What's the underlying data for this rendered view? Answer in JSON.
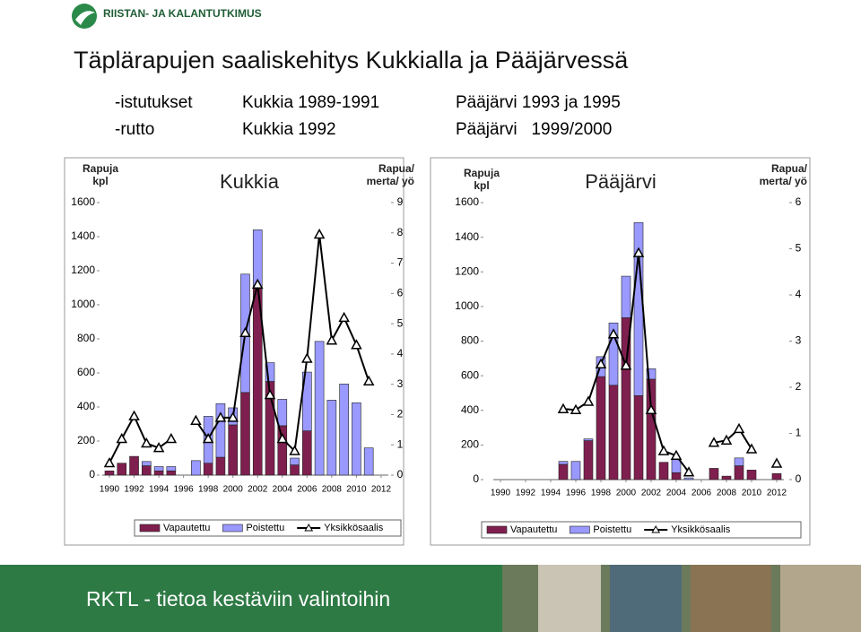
{
  "header": {
    "logo": "RIISTAN- JA KALANTUTKIMUS",
    "title": "Täplärapujen saaliskehitys Kukkialla ja Pääjärvessä",
    "rows": [
      [
        "-istutukset",
        "Kukkia 1989-1991",
        "Pääjärvi 1993 ja 1995"
      ],
      [
        "-rutto",
        "Kukkia 1992",
        "Pääjärvi   1999/2000"
      ]
    ]
  },
  "chart_data": [
    {
      "type": "bar",
      "stacked": true,
      "title": "Kukkia",
      "y_label": "Rapuja kpl",
      "y2_label": "Rapua/ merta/ yö",
      "x": [
        1990,
        1991,
        1992,
        1993,
        1994,
        1995,
        1996,
        1997,
        1998,
        1999,
        2000,
        2001,
        2002,
        2003,
        2004,
        2005,
        2006,
        2007,
        2008,
        2009,
        2010,
        2011,
        2012
      ],
      "xticks": [
        1990,
        1992,
        1994,
        1996,
        1998,
        2000,
        2002,
        2004,
        2006,
        2008,
        2010,
        2012
      ],
      "ylim": [
        0,
        1600
      ],
      "yticks": [
        0,
        200,
        400,
        600,
        800,
        1000,
        1200,
        1400,
        1600
      ],
      "y2lim": [
        0,
        9
      ],
      "y2ticks": [
        0,
        1,
        2,
        3,
        4,
        5,
        6,
        7,
        8,
        9
      ],
      "legend": "bottom",
      "series": [
        {
          "name": "Vapautettu",
          "color": "#7f1f4f",
          "values": [
            25,
            70,
            110,
            55,
            25,
            25,
            null,
            null,
            70,
            105,
            295,
            485,
            1095,
            550,
            290,
            60,
            260,
            null,
            null,
            null,
            null,
            null,
            null
          ]
        },
        {
          "name": "Poistettu",
          "color": "#9999ff",
          "values": [
            null,
            null,
            null,
            25,
            25,
            25,
            null,
            85,
            275,
            315,
            100,
            695,
            345,
            110,
            155,
            40,
            345,
            785,
            440,
            535,
            425,
            160,
            null
          ]
        },
        {
          "name": "Yksikkösaalis",
          "color": "#000000",
          "axis": "y2",
          "line": true,
          "values": [
            0.4,
            1.2,
            1.95,
            1.05,
            0.9,
            1.2,
            null,
            1.8,
            1.2,
            1.9,
            1.9,
            4.7,
            6.3,
            2.65,
            1.2,
            0.8,
            3.85,
            7.95,
            4.45,
            5.2,
            4.3,
            3.1,
            null
          ]
        }
      ]
    },
    {
      "type": "bar",
      "stacked": true,
      "title": "Pääjärvi",
      "y_label": "Rapuja kpl",
      "y2_label": "Rapua/ merta/ yö",
      "x": [
        1990,
        1991,
        1992,
        1993,
        1994,
        1995,
        1996,
        1997,
        1998,
        1999,
        2000,
        2001,
        2002,
        2003,
        2004,
        2005,
        2006,
        2007,
        2008,
        2009,
        2010,
        2011,
        2012
      ],
      "xticks": [
        1990,
        1992,
        1994,
        1996,
        1998,
        2000,
        2002,
        2004,
        2006,
        2008,
        2010,
        2012
      ],
      "ylim": [
        0,
        1600
      ],
      "yticks": [
        0,
        200,
        400,
        600,
        800,
        1000,
        1200,
        1400,
        1600
      ],
      "y2lim": [
        0,
        6
      ],
      "y2ticks": [
        0,
        1,
        2,
        3,
        4,
        5,
        6
      ],
      "legend": "bottom",
      "series": [
        {
          "name": "Vapautettu",
          "color": "#7f1f4f",
          "values": [
            null,
            null,
            null,
            null,
            null,
            88,
            null,
            225,
            595,
            545,
            935,
            485,
            580,
            100,
            40,
            null,
            null,
            65,
            20,
            80,
            55,
            null,
            35
          ]
        },
        {
          "name": "Poistettu",
          "color": "#9999ff",
          "values": [
            null,
            null,
            null,
            null,
            null,
            17,
            105,
            10,
            115,
            360,
            240,
            1000,
            60,
            null,
            75,
            10,
            null,
            null,
            null,
            45,
            null,
            null,
            null
          ]
        },
        {
          "name": "Yksikkösaalis",
          "color": "#000000",
          "axis": "y2",
          "line": true,
          "values": [
            null,
            null,
            null,
            null,
            null,
            1.53,
            1.51,
            1.69,
            2.5,
            3.15,
            2.47,
            4.91,
            1.51,
            0.62,
            0.52,
            0.16,
            null,
            0.8,
            0.85,
            1.1,
            0.66,
            null,
            0.35
          ]
        }
      ]
    }
  ],
  "footer": {
    "text": "RKTL - tietoa kestäviin valintoihin"
  }
}
